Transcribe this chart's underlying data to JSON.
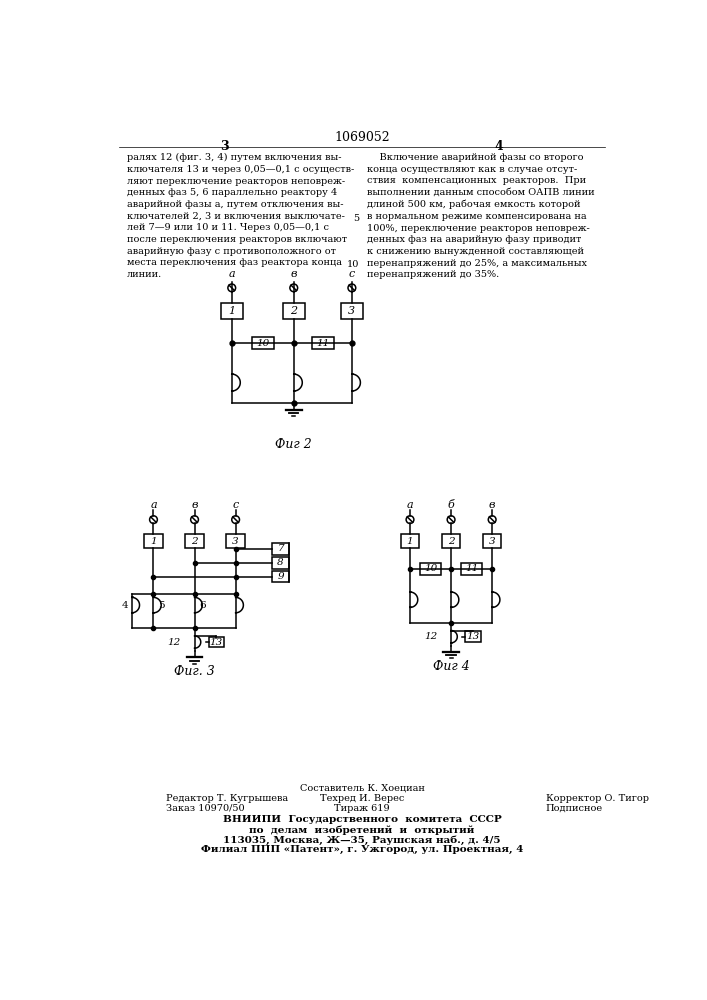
{
  "patent_number": "1069052",
  "page_left": "3",
  "page_right": "4",
  "left_text": "ралях 12 (фиг. 3, 4) путем включения вы-\nключателя 13 и через 0,05—0,1 с осуществ-\nляют переключение реакторов неповреж-\nденных фаз 5, 6 параллельно реактору 4\nаварийной фазы а, путем отключения вы-\nключателей 2, 3 и включения выключате-\nлей 7—9 или 10 и 11. Через 0,05—0,1 с\nпосле переключения реакторов включают\nаварийную фазу с противоположного от\nместа переключения фаз реактора конца\nлинии.",
  "right_text": "    Включение аварийной фазы со второго\nконца осуществляют как в случае отсут-\nствия  компенсационных  реакторов.  При\nвыполнении данным способом ОАПВ линии\nдлиной 500 км, рабочая емкость которой\nв нормальном режиме компенсирована на\n100%, переключение реакторов неповреж-\nденных фаз на аварийную фазу приводит\nк снижению вынужденной составляющей\nперенапряжений до 25%, а максимальных\nперенапряжений до 35%.",
  "linenum_5": "5",
  "linenum_10": "10",
  "fig2_label": "Фиг 2",
  "fig3_label": "Фиг. 3",
  "fig4_label": "Фиг 4",
  "footer_composer": "Составитель К. Хоециан",
  "footer_editor": "Редактор Т. Кугрышева",
  "footer_techred": "Техред И. Верес",
  "footer_corrector": "Корректор О. Тигор",
  "footer_zakaz": "Заказ 10970/50",
  "footer_tirazh": "Тираж 619",
  "footer_podpisnoe": "Подписное",
  "footer_vniip": "ВНИИПИ  Государственного  комитета  СССР",
  "footer_po_delam": "по  делам  изобретений  и  открытий",
  "footer_address": "113035, Москва, Ж—35, Раушская наб., д. 4/5",
  "footer_filial": "Филиал ППП «Патент», г. Ужгород, ул. Проектная, 4",
  "bg_color": "#ffffff",
  "text_color": "#000000"
}
